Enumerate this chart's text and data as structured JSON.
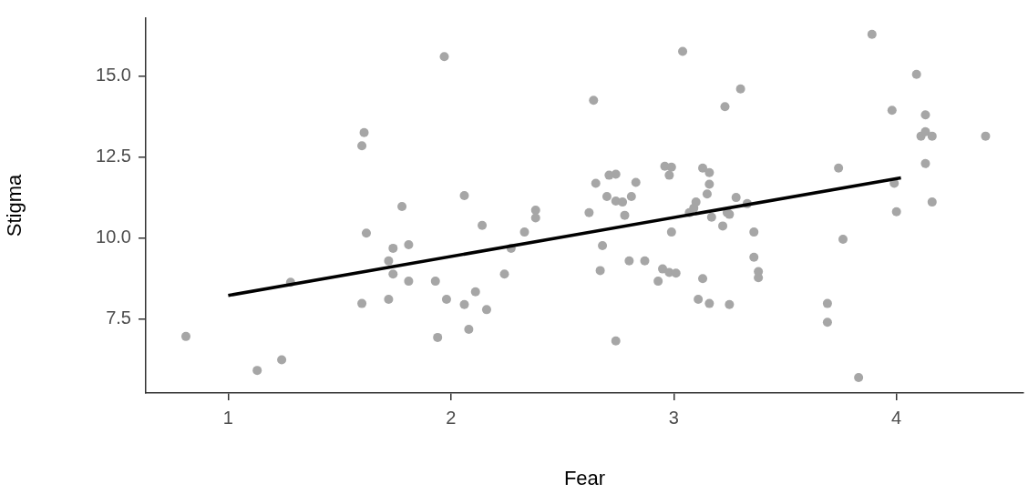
{
  "chart_data": {
    "type": "scatter",
    "xlabel": "Fear",
    "ylabel": "Stigma",
    "xlim": [
      0.63,
      4.57
    ],
    "ylim": [
      5.2,
      16.8
    ],
    "xticks": [
      1,
      2,
      3,
      4
    ],
    "yticks": [
      {
        "value": 7.5,
        "label": "7.5"
      },
      {
        "value": 10,
        "label": "10.0"
      },
      {
        "value": 12.5,
        "label": "12.5"
      },
      {
        "value": 15,
        "label": "15.0"
      }
    ],
    "grid": false,
    "legend": false,
    "marker": "circle",
    "series": [
      {
        "color": "#a6a6a6",
        "x": [
          0.81,
          1.13,
          1.24,
          1.28,
          1.61,
          1.6,
          1.62,
          1.6,
          1.78,
          1.74,
          1.72,
          1.74,
          1.81,
          1.81,
          1.72,
          1.93,
          1.94,
          1.98,
          1.97,
          2.06,
          2.06,
          2.08,
          2.11,
          2.14,
          2.16,
          2.24,
          2.27,
          2.33,
          2.38,
          2.38,
          2.64,
          2.62,
          2.65,
          2.67,
          2.68,
          2.7,
          2.71,
          2.74,
          2.74,
          2.74,
          2.77,
          2.78,
          2.8,
          2.81,
          2.83,
          2.87,
          2.93,
          2.96,
          2.99,
          2.98,
          2.95,
          2.98,
          3.01,
          2.99,
          3.04,
          3.07,
          3.1,
          3.09,
          3.13,
          3.13,
          3.11,
          3.16,
          3.16,
          3.15,
          3.16,
          3.17,
          3.23,
          3.22,
          3.24,
          3.25,
          3.28,
          3.25,
          3.3,
          3.33,
          3.36,
          3.36,
          3.38,
          3.38,
          3.74,
          3.76,
          3.69,
          3.69,
          3.83,
          3.89,
          3.98,
          3.99,
          4.0,
          4.09,
          4.13,
          4.11,
          4.13,
          4.16,
          4.13,
          4.16,
          4.4
        ],
        "values": [
          6.95,
          5.9,
          6.23,
          8.63,
          13.26,
          12.85,
          10.15,
          7.97,
          10.97,
          9.68,
          9.29,
          8.88,
          9.79,
          8.66,
          8.1,
          8.66,
          6.92,
          8.1,
          15.61,
          11.31,
          7.94,
          7.17,
          8.33,
          10.39,
          7.78,
          8.88,
          9.68,
          10.18,
          10.86,
          10.62,
          14.26,
          10.78,
          11.69,
          8.99,
          9.76,
          11.28,
          11.94,
          11.97,
          6.81,
          11.14,
          11.11,
          10.7,
          9.29,
          11.28,
          11.72,
          9.29,
          8.66,
          12.22,
          12.19,
          11.94,
          9.04,
          8.93,
          8.91,
          10.18,
          15.77,
          10.78,
          11.11,
          10.92,
          12.16,
          8.74,
          8.1,
          12.02,
          11.66,
          11.36,
          7.97,
          10.64,
          14.06,
          10.37,
          10.78,
          10.73,
          11.25,
          7.94,
          14.61,
          11.06,
          10.18,
          9.4,
          8.96,
          8.77,
          12.16,
          9.96,
          7.97,
          7.39,
          5.68,
          16.3,
          13.95,
          11.69,
          10.81,
          15.06,
          13.81,
          13.15,
          13.29,
          13.15,
          12.3,
          11.11,
          13.15
        ]
      },
      {
        "type": "line",
        "color": "#000000",
        "x": [
          1,
          4.02
        ],
        "values": [
          8.22,
          11.86
        ],
        "marker": "none"
      }
    ]
  }
}
